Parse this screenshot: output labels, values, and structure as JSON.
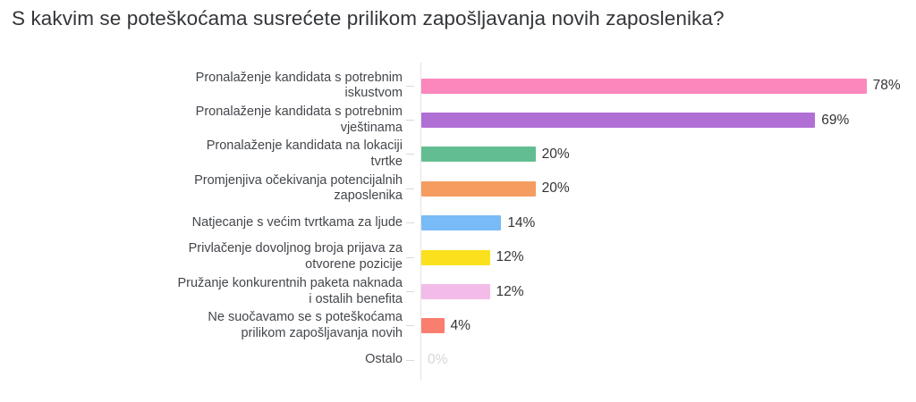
{
  "page": {
    "background": "#ffffff"
  },
  "chart_data": {
    "type": "bar",
    "orientation": "horizontal",
    "title": "S kakvim se poteškoćama susrećete prilikom zapošljavanja novih zaposlenika?",
    "xlabel": "",
    "ylabel": "",
    "xlim": [
      0,
      80
    ],
    "grid": false,
    "legend": "none",
    "value_suffix": "%",
    "categories": [
      {
        "label": "Pronalaženje kandidata s potrebnim\niskustvom",
        "value": 78,
        "display_value": "78%",
        "color": "#fb87bc",
        "value_color": "#333333"
      },
      {
        "label": "Pronalaženje kandidata s potrebnim\nvještinama",
        "value": 69,
        "display_value": "69%",
        "color": "#b06fd4",
        "value_color": "#333333"
      },
      {
        "label": "Pronalaženje kandidata na lokaciji\ntvrtke",
        "value": 20,
        "display_value": "20%",
        "color": "#62be92",
        "value_color": "#333333"
      },
      {
        "label": "Promjenjiva očekivanja potencijalnih\nzaposlenika",
        "value": 20,
        "display_value": "20%",
        "color": "#f59d61",
        "value_color": "#333333"
      },
      {
        "label": "Natjecanje s većim tvrtkama za ljude",
        "value": 14,
        "display_value": "14%",
        "color": "#79bbf7",
        "value_color": "#333333"
      },
      {
        "label": "Privlačenje dovoljnog broja prijava za\notvorene pozicije",
        "value": 12,
        "display_value": "12%",
        "color": "#fbe11d",
        "value_color": "#333333"
      },
      {
        "label": "Pružanje konkurentnih paketa naknada\ni ostalih benefita",
        "value": 12,
        "display_value": "12%",
        "color": "#f3bce8",
        "value_color": "#333333"
      },
      {
        "label": "Ne suočavamo se s poteškoćama\nprilikom zapošljavanja novih",
        "value": 4,
        "display_value": "4%",
        "color": "#f97e6e",
        "value_color": "#333333"
      },
      {
        "label": "Ostalo",
        "value": 0,
        "display_value": "0%",
        "color": "#d6d6d6",
        "value_color": "#d6d6d6"
      }
    ]
  },
  "colors": {
    "background": "#ffffff",
    "axis_line": "#e3e3e3",
    "tick": "#d9d9d9",
    "title_text": "#33353a",
    "label_text": "#43464b",
    "value_text": "#333333",
    "zero_value_text": "#d6d6d6"
  }
}
